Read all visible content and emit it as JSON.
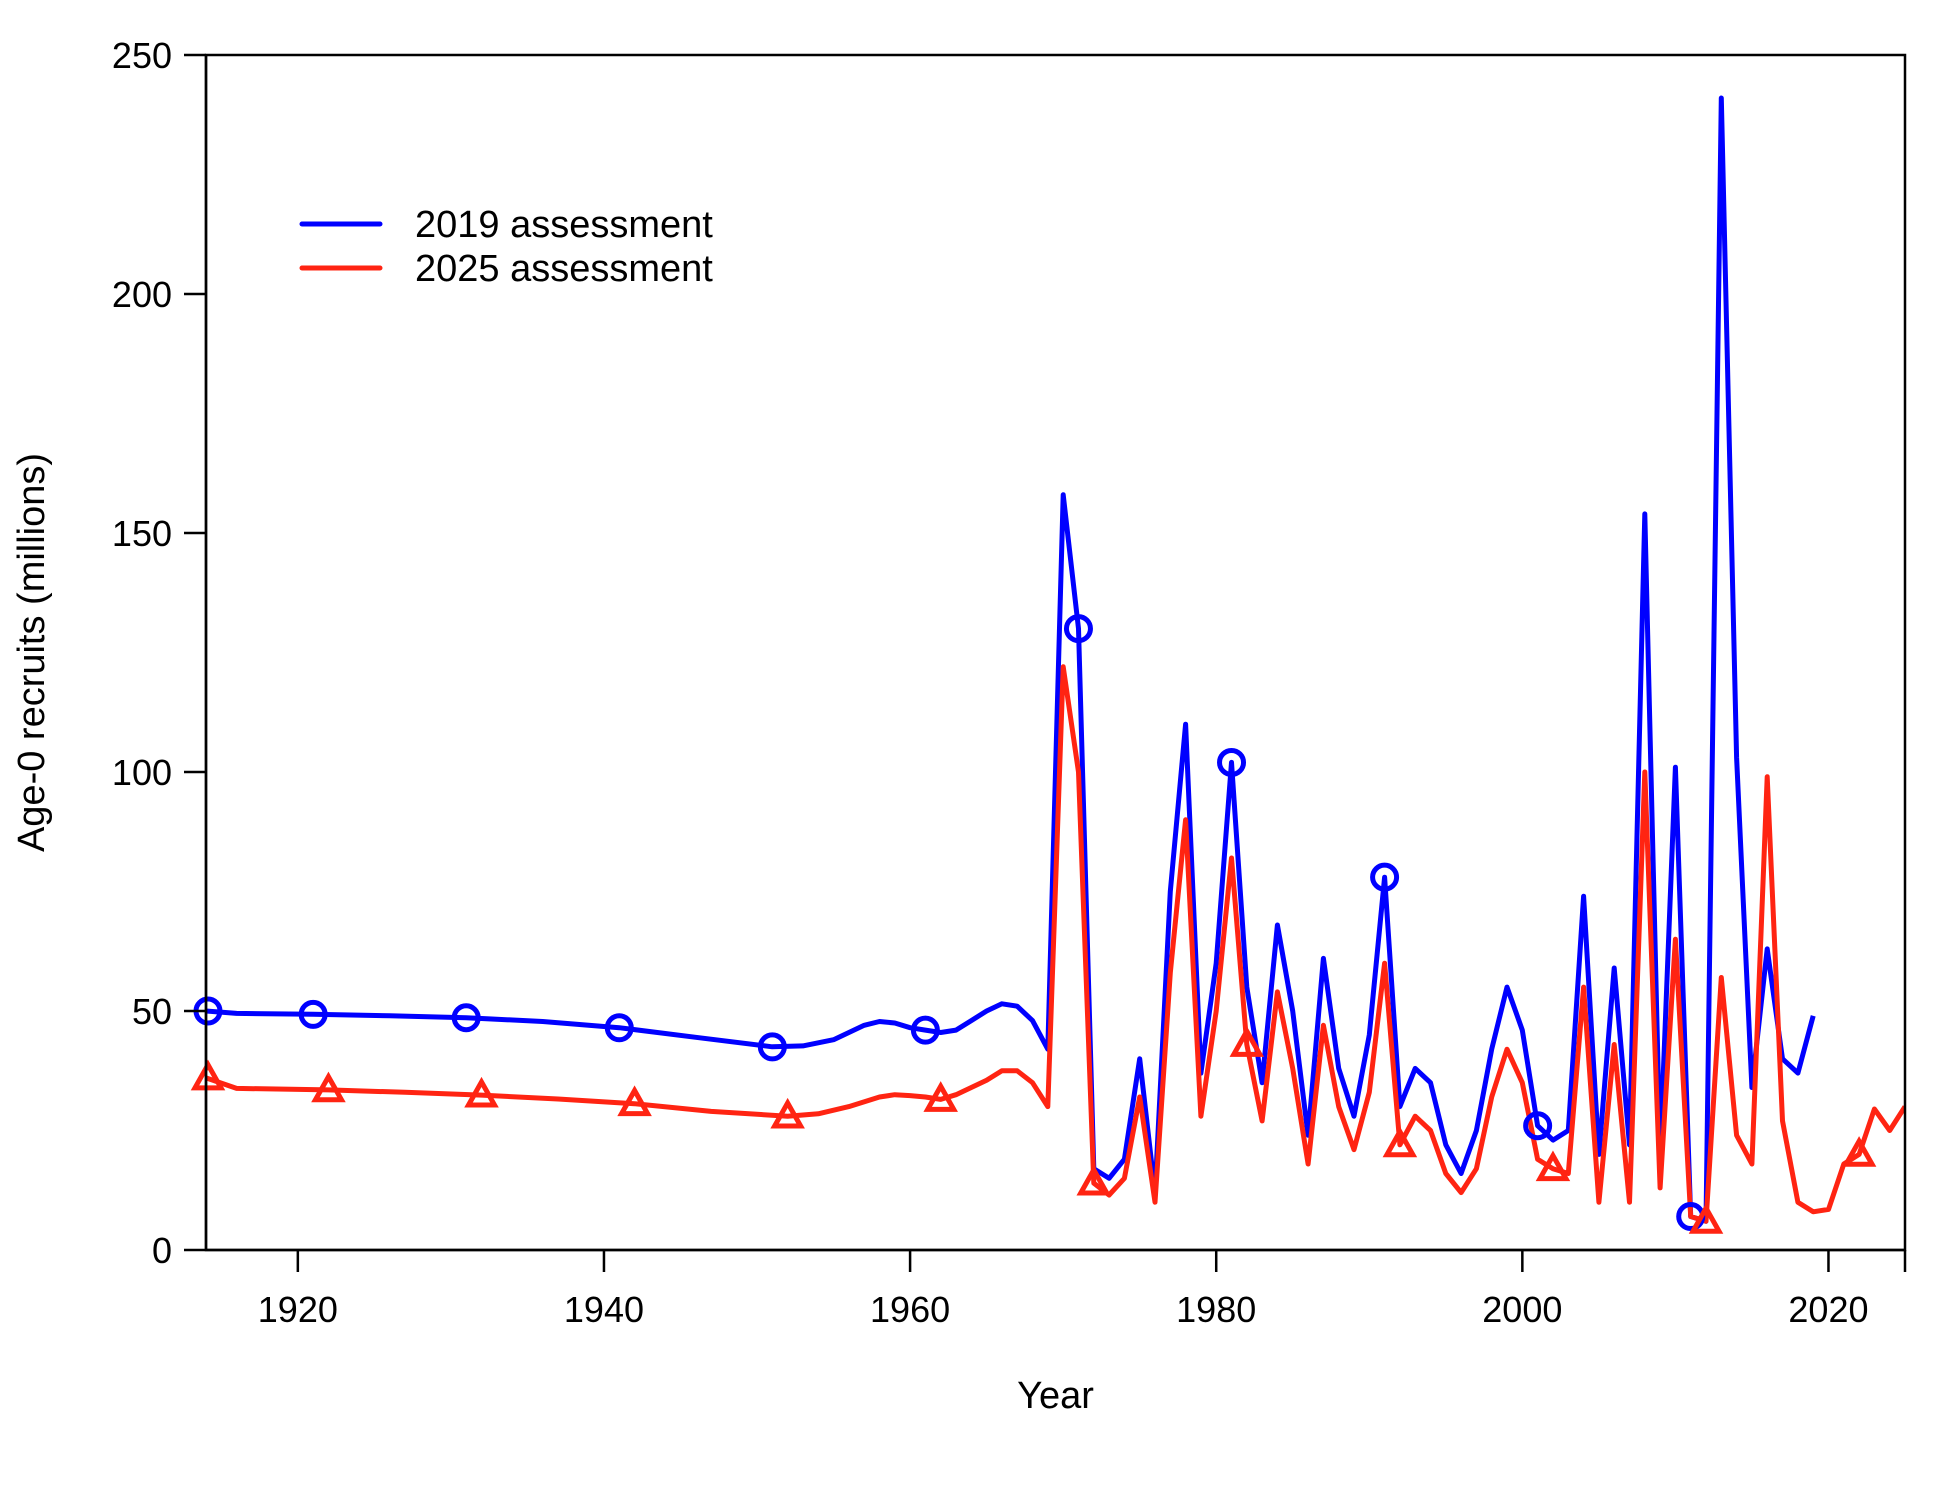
{
  "chart_data": {
    "type": "line",
    "title": "",
    "xlabel": "Year",
    "ylabel": "Age-0 recruits (millions)",
    "xlim": [
      1914,
      2025
    ],
    "ylim": [
      0,
      250
    ],
    "x_ticks": [
      1920,
      1940,
      1960,
      1980,
      2000,
      2020
    ],
    "y_ticks": [
      0,
      50,
      100,
      150,
      200,
      250
    ],
    "grid": false,
    "legend_position": "top-left",
    "series": [
      {
        "name": "2019 assessment",
        "color": "#0000ff",
        "marker": "circle",
        "marker_every": 10,
        "x": [
          1914,
          1916,
          1921,
          1926,
          1931,
          1936,
          1941,
          1946,
          1951,
          1953,
          1955,
          1957,
          1958,
          1959,
          1960,
          1961,
          1962,
          1963,
          1964,
          1965,
          1966,
          1967,
          1968,
          1969,
          1970,
          1971,
          1972,
          1973,
          1974,
          1975,
          1976,
          1977,
          1978,
          1979,
          1980,
          1981,
          1982,
          1983,
          1984,
          1985,
          1986,
          1987,
          1988,
          1989,
          1990,
          1991,
          1992,
          1993,
          1994,
          1995,
          1996,
          1997,
          1998,
          1999,
          2000,
          2001,
          2002,
          2003,
          2004,
          2005,
          2006,
          2007,
          2008,
          2009,
          2010,
          2011,
          2012,
          2013,
          2014,
          2015,
          2016,
          2017,
          2018,
          2019
        ],
        "values": [
          50,
          49.5,
          49.3,
          49,
          48.6,
          47.8,
          46.5,
          44.5,
          42.5,
          42.7,
          44,
          47,
          47.8,
          47.5,
          46.5,
          46,
          45.5,
          46,
          48,
          50,
          51.5,
          51,
          48,
          42,
          158,
          130,
          17,
          15,
          19,
          40,
          12,
          75,
          110,
          37,
          60,
          102,
          55,
          35,
          68,
          50,
          24,
          61,
          38,
          28,
          45,
          78,
          30,
          38,
          35,
          22,
          16,
          25,
          42,
          55,
          46,
          26,
          23,
          25,
          74,
          20,
          59,
          22,
          154,
          20,
          101,
          7,
          6,
          241,
          103,
          34,
          63,
          40,
          37,
          49
        ]
      },
      {
        "name": "2025 assessment",
        "color": "#ff2412",
        "marker": "triangle",
        "marker_every": 10,
        "x": [
          1914,
          1916,
          1922,
          1927,
          1932,
          1937,
          1942,
          1947,
          1952,
          1954,
          1956,
          1958,
          1959,
          1960,
          1961,
          1962,
          1963,
          1964,
          1965,
          1966,
          1967,
          1968,
          1969,
          1970,
          1971,
          1972,
          1973,
          1974,
          1975,
          1976,
          1977,
          1978,
          1979,
          1980,
          1981,
          1982,
          1983,
          1984,
          1985,
          1986,
          1987,
          1988,
          1989,
          1990,
          1991,
          1992,
          1993,
          1994,
          1995,
          1996,
          1997,
          1998,
          1999,
          2000,
          2001,
          2002,
          2003,
          2004,
          2005,
          2006,
          2007,
          2008,
          2009,
          2010,
          2011,
          2012,
          2013,
          2014,
          2015,
          2016,
          2017,
          2018,
          2019,
          2020,
          2021,
          2022,
          2023,
          2024,
          2025
        ],
        "values": [
          36,
          33.8,
          33.5,
          33,
          32.4,
          31.6,
          30.6,
          29,
          28,
          28.5,
          30,
          32,
          32.5,
          32.3,
          32,
          31.5,
          32.5,
          34,
          35.5,
          37.5,
          37.5,
          35,
          30,
          122,
          100,
          14,
          11.5,
          15,
          32,
          10,
          58,
          90,
          28,
          50,
          82,
          43,
          27,
          54,
          38,
          18,
          47,
          30,
          21,
          33,
          60,
          22,
          28,
          25,
          16,
          12,
          17,
          32,
          42,
          35,
          19,
          17,
          16,
          55,
          10,
          43,
          10,
          100,
          13,
          65,
          7,
          6,
          57,
          24,
          18,
          99,
          27,
          10,
          8,
          8.5,
          18,
          20,
          29.5,
          25,
          30
        ]
      }
    ]
  }
}
